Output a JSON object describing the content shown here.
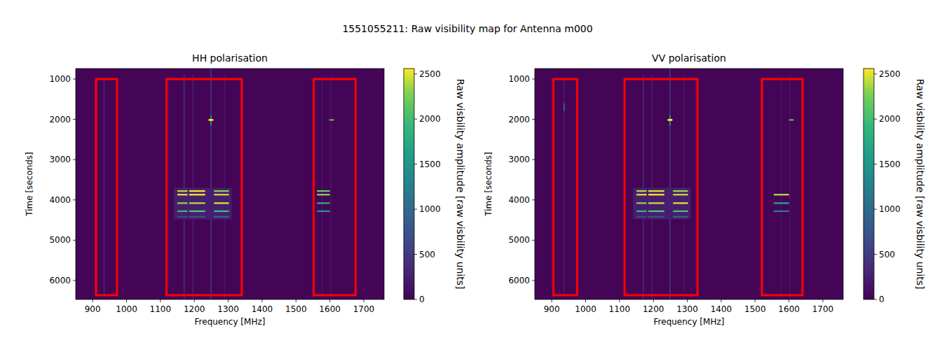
{
  "title": "1551055211: Raw visibility map for Antenna m000",
  "chart_data": [
    {
      "type": "heatmap",
      "title": "HH polarisation",
      "x_label": "Frequency [MHz]",
      "y_label": "Time [seconds]",
      "xlim": [
        850,
        1760
      ],
      "xticks": [
        900,
        1000,
        1100,
        1200,
        1300,
        1400,
        1500,
        1600,
        1700
      ],
      "ylim": [
        740,
        6470
      ],
      "yticks": [
        1000,
        2000,
        3000,
        4000,
        5000,
        6000
      ],
      "color_label": "Raw visbility amplitude [raw visbility units]",
      "color_range": [
        0,
        2560
      ],
      "color_ticks": [
        0,
        500,
        1000,
        1500,
        2000,
        2500
      ],
      "cells": [
        {
          "freq": [
            850,
            1760
          ],
          "time": [
            740,
            6470
          ],
          "value": 30
        },
        {
          "freq": [
            932,
            936
          ],
          "time": [
            1000,
            6400
          ],
          "value": 250
        },
        {
          "freq": [
            1168,
            1172
          ],
          "time": [
            900,
            6470
          ],
          "value": 300
        },
        {
          "freq": [
            1194,
            1198
          ],
          "time": [
            900,
            6470
          ],
          "value": 220
        },
        {
          "freq": [
            1247,
            1251
          ],
          "time": [
            740,
            6470
          ],
          "value": 380
        },
        {
          "freq": [
            1288,
            1291
          ],
          "time": [
            900,
            6470
          ],
          "value": 200
        },
        {
          "freq": [
            1575,
            1578
          ],
          "time": [
            900,
            6470
          ],
          "value": 180
        },
        {
          "freq": [
            1602,
            1605
          ],
          "time": [
            900,
            6470
          ],
          "value": 200
        },
        {
          "freq": [
            1140,
            1310
          ],
          "time": [
            3700,
            4480
          ],
          "value": 250
        },
        {
          "freq": [
            1247,
            1251
          ],
          "time": [
            1900,
            2150
          ],
          "value": 1400
        },
        {
          "freq": [
            1242,
            1256
          ],
          "time": [
            1990,
            2040
          ],
          "value": 2550
        },
        {
          "freq": [
            1598,
            1612
          ],
          "time": [
            2000,
            2030
          ],
          "value": 2300
        },
        {
          "freq": [
            1150,
            1180
          ],
          "time": [
            3760,
            3800
          ],
          "value": 2400
        },
        {
          "freq": [
            1185,
            1232
          ],
          "time": [
            3760,
            3800
          ],
          "value": 2550
        },
        {
          "freq": [
            1258,
            1302
          ],
          "time": [
            3760,
            3800
          ],
          "value": 2300
        },
        {
          "freq": [
            1150,
            1180
          ],
          "time": [
            3850,
            3890
          ],
          "value": 2500
        },
        {
          "freq": [
            1185,
            1232
          ],
          "time": [
            3850,
            3890
          ],
          "value": 2560
        },
        {
          "freq": [
            1258,
            1302
          ],
          "time": [
            3850,
            3890
          ],
          "value": 2450
        },
        {
          "freq": [
            1150,
            1180
          ],
          "time": [
            4060,
            4100
          ],
          "value": 2300
        },
        {
          "freq": [
            1185,
            1232
          ],
          "time": [
            4060,
            4100
          ],
          "value": 2400
        },
        {
          "freq": [
            1258,
            1302
          ],
          "time": [
            4060,
            4100
          ],
          "value": 2500
        },
        {
          "freq": [
            1150,
            1180
          ],
          "time": [
            4260,
            4300
          ],
          "value": 1900
        },
        {
          "freq": [
            1185,
            1232
          ],
          "time": [
            4260,
            4300
          ],
          "value": 2100
        },
        {
          "freq": [
            1258,
            1302
          ],
          "time": [
            4260,
            4300
          ],
          "value": 2000
        },
        {
          "freq": [
            1150,
            1180
          ],
          "time": [
            4400,
            4440
          ],
          "value": 600
        },
        {
          "freq": [
            1185,
            1232
          ],
          "time": [
            4400,
            4440
          ],
          "value": 700
        },
        {
          "freq": [
            1258,
            1302
          ],
          "time": [
            4400,
            4440
          ],
          "value": 900
        },
        {
          "freq": [
            1562,
            1600
          ],
          "time": [
            3760,
            3800
          ],
          "value": 2200
        },
        {
          "freq": [
            1562,
            1600
          ],
          "time": [
            3850,
            3890
          ],
          "value": 2300
        },
        {
          "freq": [
            1562,
            1600
          ],
          "time": [
            4060,
            4100
          ],
          "value": 1800
        },
        {
          "freq": [
            1562,
            1600
          ],
          "time": [
            4260,
            4300
          ],
          "value": 1500
        }
      ],
      "boxes": [
        {
          "freq": [
            910,
            972
          ],
          "time": [
            1000,
            6365
          ]
        },
        {
          "freq": [
            1118,
            1340
          ],
          "time": [
            1000,
            6365
          ]
        },
        {
          "freq": [
            1552,
            1676
          ],
          "time": [
            1000,
            6365
          ]
        }
      ],
      "color": "#ff0000"
    },
    {
      "type": "heatmap",
      "title": "VV polarisation",
      "x_label": "Frequency [MHz]",
      "y_label": "Time [seconds]",
      "xlim": [
        850,
        1760
      ],
      "xticks": [
        900,
        1000,
        1100,
        1200,
        1300,
        1400,
        1500,
        1600,
        1700
      ],
      "ylim": [
        740,
        6470
      ],
      "yticks": [
        1000,
        2000,
        3000,
        4000,
        5000,
        6000
      ],
      "color_label": "Raw visbility amplitude [raw visbility units]",
      "color_range": [
        0,
        2560
      ],
      "color_ticks": [
        0,
        500,
        1000,
        1500,
        2000,
        2500
      ],
      "cells": [
        {
          "freq": [
            850,
            1760
          ],
          "time": [
            740,
            6470
          ],
          "value": 30
        },
        {
          "freq": [
            935,
            938
          ],
          "time": [
            1000,
            6400
          ],
          "value": 280
        },
        {
          "freq": [
            935,
            938
          ],
          "time": [
            1600,
            1800
          ],
          "value": 1200
        },
        {
          "freq": [
            1168,
            1172
          ],
          "time": [
            900,
            6470
          ],
          "value": 300
        },
        {
          "freq": [
            1194,
            1198
          ],
          "time": [
            900,
            6470
          ],
          "value": 220
        },
        {
          "freq": [
            1247,
            1251
          ],
          "time": [
            740,
            6470
          ],
          "value": 380
        },
        {
          "freq": [
            1288,
            1291
          ],
          "time": [
            900,
            6470
          ],
          "value": 200
        },
        {
          "freq": [
            1575,
            1578
          ],
          "time": [
            900,
            6470
          ],
          "value": 180
        },
        {
          "freq": [
            1602,
            1605
          ],
          "time": [
            900,
            6470
          ],
          "value": 200
        },
        {
          "freq": [
            1140,
            1310
          ],
          "time": [
            3700,
            4480
          ],
          "value": 250
        },
        {
          "freq": [
            1247,
            1251
          ],
          "time": [
            1900,
            2150
          ],
          "value": 1400
        },
        {
          "freq": [
            1242,
            1256
          ],
          "time": [
            1990,
            2040
          ],
          "value": 2550
        },
        {
          "freq": [
            1600,
            1614
          ],
          "time": [
            2000,
            2030
          ],
          "value": 2300
        },
        {
          "freq": [
            1150,
            1180
          ],
          "time": [
            3760,
            3800
          ],
          "value": 2400
        },
        {
          "freq": [
            1185,
            1232
          ],
          "time": [
            3760,
            3800
          ],
          "value": 2500
        },
        {
          "freq": [
            1258,
            1302
          ],
          "time": [
            3760,
            3800
          ],
          "value": 2350
        },
        {
          "freq": [
            1150,
            1180
          ],
          "time": [
            3850,
            3890
          ],
          "value": 2500
        },
        {
          "freq": [
            1185,
            1232
          ],
          "time": [
            3850,
            3890
          ],
          "value": 2560
        },
        {
          "freq": [
            1258,
            1302
          ],
          "time": [
            3850,
            3890
          ],
          "value": 2450
        },
        {
          "freq": [
            1150,
            1180
          ],
          "time": [
            4060,
            4100
          ],
          "value": 2300
        },
        {
          "freq": [
            1185,
            1232
          ],
          "time": [
            4060,
            4100
          ],
          "value": 2450
        },
        {
          "freq": [
            1258,
            1302
          ],
          "time": [
            4060,
            4100
          ],
          "value": 2500
        },
        {
          "freq": [
            1150,
            1180
          ],
          "time": [
            4260,
            4300
          ],
          "value": 1900
        },
        {
          "freq": [
            1185,
            1232
          ],
          "time": [
            4260,
            4300
          ],
          "value": 2100
        },
        {
          "freq": [
            1258,
            1302
          ],
          "time": [
            4260,
            4300
          ],
          "value": 2050
        },
        {
          "freq": [
            1150,
            1180
          ],
          "time": [
            4400,
            4440
          ],
          "value": 600
        },
        {
          "freq": [
            1185,
            1232
          ],
          "time": [
            4400,
            4440
          ],
          "value": 700
        },
        {
          "freq": [
            1258,
            1302
          ],
          "time": [
            4400,
            4440
          ],
          "value": 900
        },
        {
          "freq": [
            1555,
            1600
          ],
          "time": [
            3850,
            3890
          ],
          "value": 2400
        },
        {
          "freq": [
            1555,
            1600
          ],
          "time": [
            4060,
            4100
          ],
          "value": 1700
        },
        {
          "freq": [
            1555,
            1600
          ],
          "time": [
            4260,
            4300
          ],
          "value": 1200
        }
      ],
      "boxes": [
        {
          "freq": [
            905,
            975
          ],
          "time": [
            1000,
            6365
          ]
        },
        {
          "freq": [
            1115,
            1330
          ],
          "time": [
            1000,
            6365
          ]
        },
        {
          "freq": [
            1520,
            1640
          ],
          "time": [
            1000,
            6365
          ]
        }
      ],
      "color": "#ff0000"
    }
  ]
}
